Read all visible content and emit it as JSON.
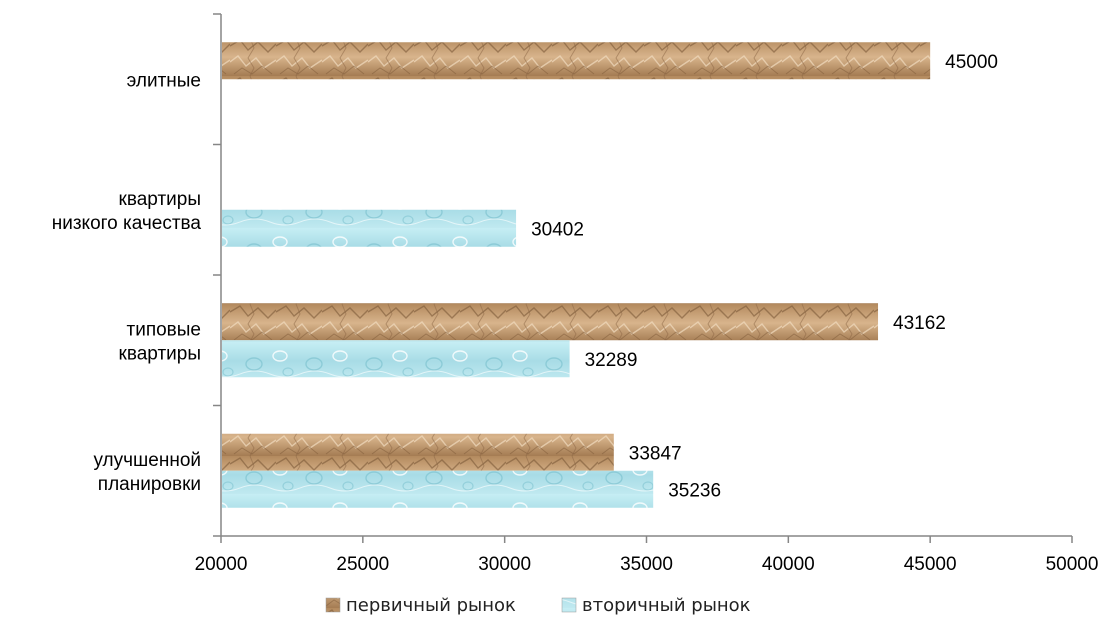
{
  "chart_data": {
    "type": "bar",
    "orientation": "horizontal",
    "categories": [
      [
        "улучшенной",
        "планировки"
      ],
      [
        "типовые",
        "квартиры"
      ],
      [
        "квартиры",
        "низкого качества"
      ],
      [
        "элитные"
      ]
    ],
    "series": [
      {
        "name": "первичный рынок",
        "values": [
          33847,
          43162,
          null,
          45000
        ],
        "color": "#c9a27a"
      },
      {
        "name": "вторичный рынок",
        "values": [
          35236,
          32289,
          30402,
          null
        ],
        "color": "#a9dfe8"
      }
    ],
    "xlim": [
      20000,
      50000
    ],
    "xticks": [
      20000,
      25000,
      30000,
      35000,
      40000,
      45000,
      50000
    ],
    "legend_position": "bottom",
    "grid": false
  }
}
